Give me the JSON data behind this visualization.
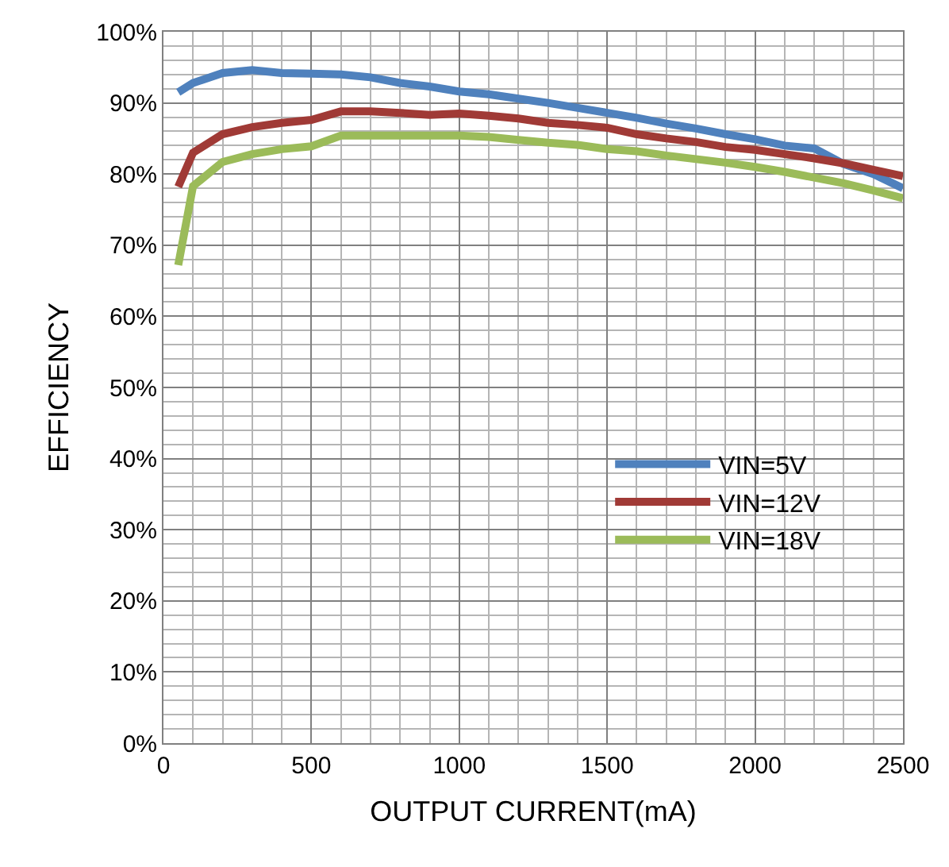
{
  "chart_data": {
    "type": "line",
    "xlabel": "OUTPUT CURRENT(mA)",
    "ylabel": "EFFICIENCY",
    "x": [
      50,
      100,
      200,
      300,
      400,
      500,
      600,
      700,
      800,
      900,
      1000,
      1100,
      1200,
      1300,
      1400,
      1500,
      1600,
      1700,
      1800,
      1900,
      2000,
      2100,
      2200,
      2300,
      2400,
      2500
    ],
    "series": [
      {
        "name": "VIN=5V",
        "color": "#4f81bd",
        "values": [
          91.5,
          92.8,
          94.2,
          94.6,
          94.2,
          94.1,
          94,
          93.6,
          92.8,
          92.3,
          91.6,
          91.2,
          90.6,
          90,
          89.3,
          88.6,
          87.9,
          87.1,
          86.4,
          85.6,
          84.9,
          84,
          83.6,
          81.4,
          80,
          78
        ]
      },
      {
        "name": "VIN=12V",
        "color": "#a03a36",
        "values": [
          78.2,
          83,
          85.6,
          86.6,
          87.2,
          87.6,
          88.8,
          88.8,
          88.6,
          88.3,
          88.5,
          88.2,
          87.8,
          87.2,
          86.9,
          86.5,
          85.6,
          85,
          84.5,
          83.8,
          83.4,
          82.8,
          82.2,
          81.5,
          80.6,
          79.7
        ]
      },
      {
        "name": "VIN=18V",
        "color": "#9bbb59",
        "values": [
          67.2,
          78.3,
          81.7,
          82.8,
          83.5,
          83.9,
          85.4,
          85.4,
          85.4,
          85.4,
          85.4,
          85.2,
          84.8,
          84.4,
          84.1,
          83.5,
          83.2,
          82.6,
          82.1,
          81.6,
          81,
          80.3,
          79.5,
          78.7,
          77.7,
          76.6
        ]
      }
    ],
    "xlim": [
      0,
      2500
    ],
    "xticks": [
      0,
      500,
      1000,
      1500,
      2000,
      2500
    ],
    "ylim": [
      0,
      100
    ],
    "yticks": [
      {
        "value": 0,
        "label": "0%"
      },
      {
        "value": 10,
        "label": "10%"
      },
      {
        "value": 20,
        "label": "20%"
      },
      {
        "value": 30,
        "label": "30%"
      },
      {
        "value": 40,
        "label": "40%"
      },
      {
        "value": 50,
        "label": "50%"
      },
      {
        "value": 60,
        "label": "60%"
      },
      {
        "value": 70,
        "label": "70%"
      },
      {
        "value": 80,
        "label": "80%"
      },
      {
        "value": 90,
        "label": "90%"
      },
      {
        "value": 100,
        "label": "100%"
      }
    ],
    "grid": true,
    "legend": "right",
    "marker": "none",
    "line_style": "solid"
  }
}
